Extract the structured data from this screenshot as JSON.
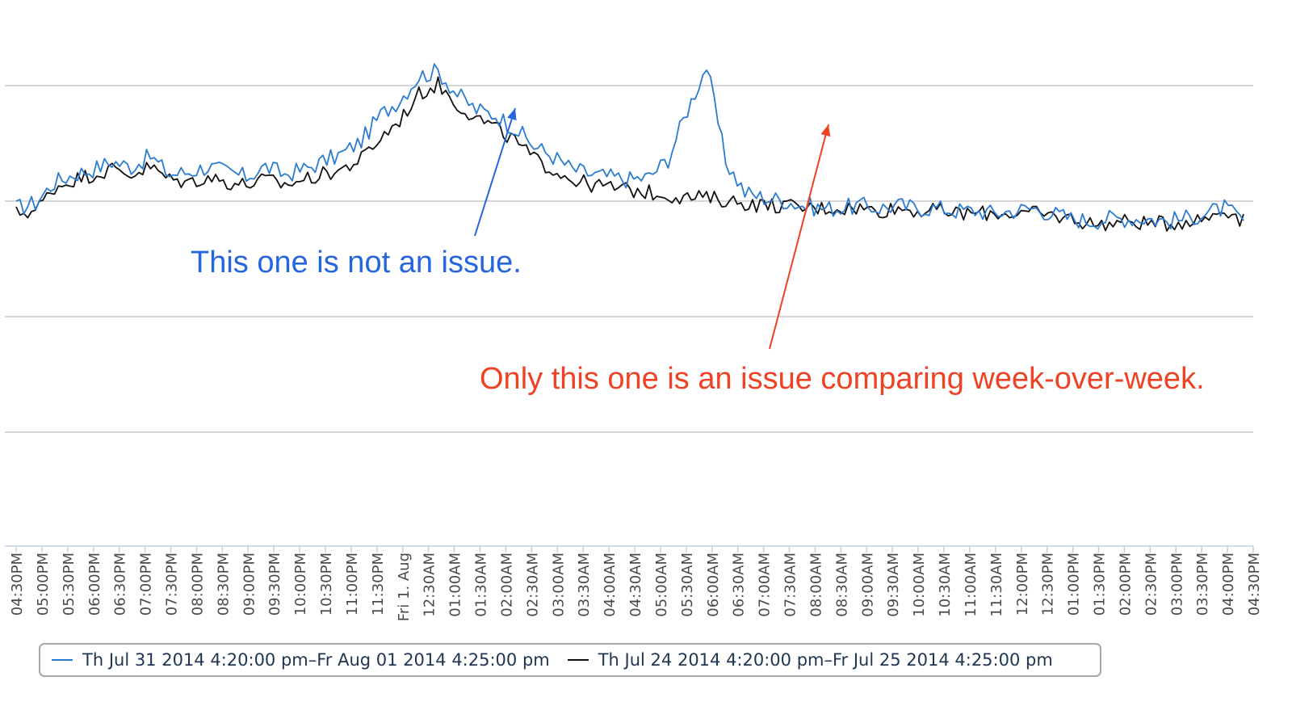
{
  "chart_data": {
    "type": "line",
    "title": "",
    "xlabel": "",
    "ylabel": "",
    "x_ticks": [
      "04:30PM",
      "05:00PM",
      "05:30PM",
      "06:00PM",
      "06:30PM",
      "07:00PM",
      "07:30PM",
      "08:00PM",
      "08:30PM",
      "09:00PM",
      "09:30PM",
      "10:00PM",
      "10:30PM",
      "11:00PM",
      "11:30PM",
      "Fri 1. Aug",
      "12:30AM",
      "01:00AM",
      "01:30AM",
      "02:00AM",
      "02:30AM",
      "03:00AM",
      "03:30AM",
      "04:00AM",
      "04:30AM",
      "05:00AM",
      "05:30AM",
      "06:00AM",
      "06:30AM",
      "07:00AM",
      "07:30AM",
      "08:00AM",
      "08:30AM",
      "09:00AM",
      "09:30AM",
      "10:00AM",
      "10:30AM",
      "11:00AM",
      "11:30AM",
      "12:00PM",
      "12:30PM",
      "01:00PM",
      "01:30PM",
      "02:00PM",
      "02:30PM",
      "03:00PM",
      "03:30PM",
      "04:00PM",
      "04:30PM"
    ],
    "y_gridlines": 4,
    "grid": true,
    "legend_position": "bottom-left",
    "series": [
      {
        "name": "Th Jul 31 2014 4:20:00 pm–Fr Aug 01 2014 4:25:00 pm",
        "color": "#2b7bd1",
        "values": [
          0.42,
          0.44,
          0.52,
          0.55,
          0.57,
          0.6,
          0.58,
          0.62,
          0.55,
          0.56,
          0.58,
          0.56,
          0.54,
          0.58,
          0.55,
          0.57,
          0.6,
          0.63,
          0.68,
          0.78,
          0.84,
          0.93,
          0.95,
          0.86,
          0.8,
          0.78,
          0.73,
          0.66,
          0.62,
          0.57,
          0.55,
          0.54,
          0.53,
          0.54,
          0.61,
          0.8,
          0.97,
          0.6,
          0.48,
          0.46,
          0.45,
          0.43,
          0.42,
          0.42,
          0.43,
          0.42,
          0.43,
          0.42,
          0.42,
          0.41,
          0.41,
          0.4,
          0.41,
          0.42,
          0.4,
          0.38,
          0.37,
          0.38,
          0.38,
          0.38,
          0.37,
          0.38,
          0.4,
          0.42,
          0.37
        ]
      },
      {
        "name": "Th Jul 24 2014 4:20:00 pm–Fr Jul 25 2014 4:25:00 pm",
        "color": "#111111",
        "values": [
          0.4,
          0.41,
          0.5,
          0.53,
          0.55,
          0.57,
          0.55,
          0.58,
          0.53,
          0.52,
          0.54,
          0.52,
          0.51,
          0.53,
          0.51,
          0.53,
          0.55,
          0.57,
          0.61,
          0.69,
          0.76,
          0.86,
          0.9,
          0.82,
          0.77,
          0.73,
          0.68,
          0.61,
          0.57,
          0.53,
          0.51,
          0.5,
          0.49,
          0.48,
          0.47,
          0.46,
          0.46,
          0.45,
          0.44,
          0.43,
          0.43,
          0.42,
          0.42,
          0.42,
          0.42,
          0.41,
          0.42,
          0.41,
          0.41,
          0.4,
          0.4,
          0.4,
          0.4,
          0.4,
          0.39,
          0.38,
          0.36,
          0.36,
          0.37,
          0.36,
          0.36,
          0.37,
          0.38,
          0.42,
          0.37
        ]
      }
    ]
  },
  "annotations": {
    "blue_text": "This one is not an issue.",
    "red_text": "Only this one is an issue comparing week-over-week.",
    "blue_color": "#2566e0",
    "red_color": "#ef4123"
  },
  "legend": {
    "item1": "Th Jul 31 2014 4:20:00 pm–Fr Aug 01 2014 4:25:00 pm",
    "item2": "Th Jul 24 2014 4:20:00 pm–Fr Jul 25 2014 4:25:00 pm"
  }
}
